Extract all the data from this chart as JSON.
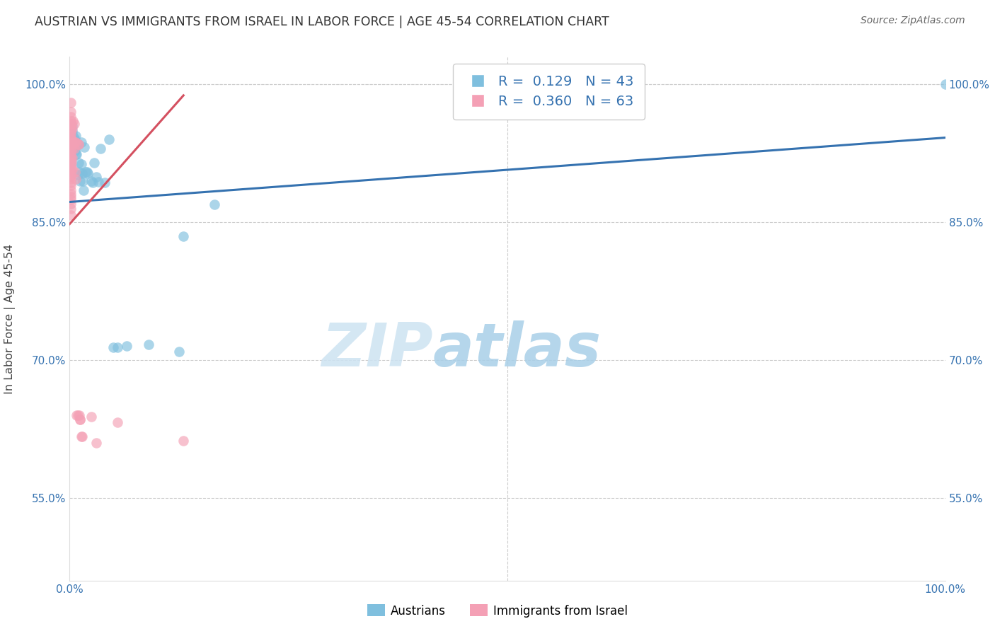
{
  "title": "AUSTRIAN VS IMMIGRANTS FROM ISRAEL IN LABOR FORCE | AGE 45-54 CORRELATION CHART",
  "source": "Source: ZipAtlas.com",
  "ylabel": "In Labor Force | Age 45-54",
  "xlim": [
    0,
    1.0
  ],
  "ylim": [
    0.46,
    1.03
  ],
  "yticks": [
    0.55,
    0.7,
    0.85,
    1.0
  ],
  "ytick_labels": [
    "55.0%",
    "70.0%",
    "85.0%",
    "100.0%"
  ],
  "legend_blue_R": "0.129",
  "legend_blue_N": "43",
  "legend_pink_R": "0.360",
  "legend_pink_N": "63",
  "blue_color": "#7fbfde",
  "pink_color": "#f4a0b5",
  "blue_line_color": "#3572b0",
  "pink_line_color": "#d45060",
  "watermark_zip": "ZIP",
  "watermark_atlas": "atlas",
  "blue_line_x0": 0.0,
  "blue_line_y0": 0.872,
  "blue_line_x1": 1.0,
  "blue_line_y1": 0.942,
  "pink_line_x0": 0.0,
  "pink_line_y0": 0.848,
  "pink_line_x1": 0.13,
  "pink_line_y1": 0.988,
  "blue_x": [
    0.003,
    0.003,
    0.003,
    0.003,
    0.005,
    0.005,
    0.005,
    0.005,
    0.006,
    0.006,
    0.007,
    0.007,
    0.008,
    0.009,
    0.01,
    0.01,
    0.011,
    0.012,
    0.013,
    0.013,
    0.014,
    0.015,
    0.016,
    0.017,
    0.018,
    0.02,
    0.021,
    0.025,
    0.026,
    0.028,
    0.03,
    0.033,
    0.035,
    0.04,
    0.045,
    0.05,
    0.055,
    0.065,
    0.09,
    0.125,
    0.13,
    0.165,
    1.0
  ],
  "blue_y": [
    0.955,
    0.949,
    0.946,
    0.942,
    0.942,
    0.94,
    0.937,
    0.932,
    0.932,
    0.928,
    0.944,
    0.924,
    0.924,
    0.902,
    0.935,
    0.915,
    0.905,
    0.895,
    0.937,
    0.913,
    0.903,
    0.895,
    0.885,
    0.932,
    0.905,
    0.905,
    0.903,
    0.895,
    0.893,
    0.915,
    0.899,
    0.894,
    0.93,
    0.893,
    0.94,
    0.714,
    0.714,
    0.715,
    0.717,
    0.709,
    0.835,
    0.869,
    1.0
  ],
  "pink_x": [
    0.001,
    0.001,
    0.001,
    0.001,
    0.001,
    0.001,
    0.001,
    0.001,
    0.001,
    0.001,
    0.001,
    0.001,
    0.001,
    0.001,
    0.001,
    0.001,
    0.001,
    0.001,
    0.001,
    0.001,
    0.001,
    0.001,
    0.001,
    0.001,
    0.001,
    0.001,
    0.001,
    0.001,
    0.001,
    0.001,
    0.001,
    0.001,
    0.001,
    0.001,
    0.001,
    0.002,
    0.002,
    0.002,
    0.003,
    0.003,
    0.003,
    0.003,
    0.004,
    0.004,
    0.005,
    0.005,
    0.006,
    0.006,
    0.007,
    0.007,
    0.008,
    0.009,
    0.01,
    0.01,
    0.011,
    0.012,
    0.012,
    0.013,
    0.014,
    0.025,
    0.03,
    0.055,
    0.13
  ],
  "pink_y": [
    0.98,
    0.97,
    0.965,
    0.96,
    0.957,
    0.954,
    0.95,
    0.948,
    0.945,
    0.942,
    0.94,
    0.937,
    0.935,
    0.932,
    0.928,
    0.925,
    0.922,
    0.919,
    0.916,
    0.913,
    0.91,
    0.907,
    0.905,
    0.902,
    0.9,
    0.897,
    0.893,
    0.89,
    0.885,
    0.881,
    0.878,
    0.875,
    0.87,
    0.865,
    0.858,
    0.957,
    0.936,
    0.915,
    0.952,
    0.93,
    0.92,
    0.908,
    0.96,
    0.937,
    0.957,
    0.93,
    0.937,
    0.905,
    0.937,
    0.897,
    0.64,
    0.64,
    0.935,
    0.935,
    0.64,
    0.635,
    0.635,
    0.617,
    0.617,
    0.638,
    0.61,
    0.632,
    0.612
  ]
}
